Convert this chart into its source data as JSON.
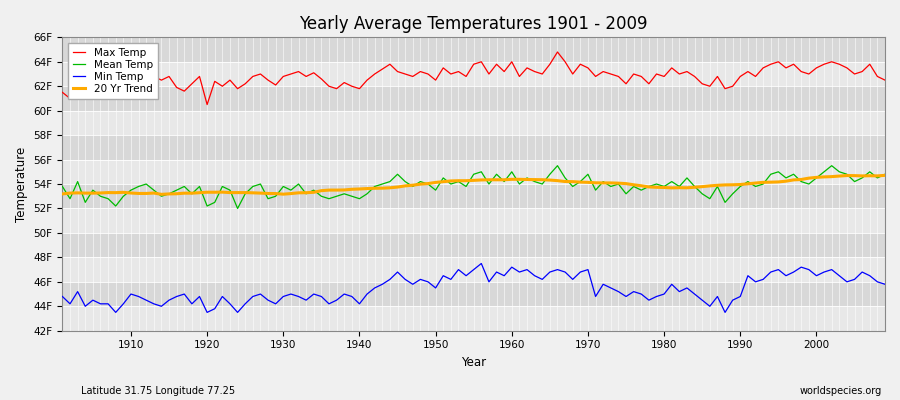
{
  "title": "Yearly Average Temperatures 1901 - 2009",
  "xlabel": "Year",
  "ylabel": "Temperature",
  "subtitle_left": "Latitude 31.75 Longitude 77.25",
  "subtitle_right": "worldspecies.org",
  "ylim": [
    42,
    66
  ],
  "yticks": [
    42,
    44,
    46,
    48,
    50,
    52,
    54,
    56,
    58,
    60,
    62,
    64,
    66
  ],
  "ytick_labels": [
    "42F",
    "44F",
    "46F",
    "48F",
    "50F",
    "52F",
    "54F",
    "56F",
    "58F",
    "60F",
    "62F",
    "64F",
    "66F"
  ],
  "xlim": [
    1901,
    2009
  ],
  "bg_color": "#f0f0f0",
  "plot_bg_color": "#f0f0f0",
  "band_color1": "#e8e8e8",
  "band_color2": "#d8d8d8",
  "grid_color": "#ffffff",
  "max_color": "#ff0000",
  "mean_color": "#00bb00",
  "min_color": "#0000ff",
  "trend_color": "#ffaa00",
  "legend_labels": [
    "Max Temp",
    "Mean Temp",
    "Min Temp",
    "20 Yr Trend"
  ],
  "years": [
    1901,
    1902,
    1903,
    1904,
    1905,
    1906,
    1907,
    1908,
    1909,
    1910,
    1911,
    1912,
    1913,
    1914,
    1915,
    1916,
    1917,
    1918,
    1919,
    1920,
    1921,
    1922,
    1923,
    1924,
    1925,
    1926,
    1927,
    1928,
    1929,
    1930,
    1931,
    1932,
    1933,
    1934,
    1935,
    1936,
    1937,
    1938,
    1939,
    1940,
    1941,
    1942,
    1943,
    1944,
    1945,
    1946,
    1947,
    1948,
    1949,
    1950,
    1951,
    1952,
    1953,
    1954,
    1955,
    1956,
    1957,
    1958,
    1959,
    1960,
    1961,
    1962,
    1963,
    1964,
    1965,
    1966,
    1967,
    1968,
    1969,
    1970,
    1971,
    1972,
    1973,
    1974,
    1975,
    1976,
    1977,
    1978,
    1979,
    1980,
    1981,
    1982,
    1983,
    1984,
    1985,
    1986,
    1987,
    1988,
    1989,
    1990,
    1991,
    1992,
    1993,
    1994,
    1995,
    1996,
    1997,
    1998,
    1999,
    2000,
    2001,
    2002,
    2003,
    2004,
    2005,
    2006,
    2007,
    2008,
    2009
  ],
  "max_temp": [
    61.5,
    61.0,
    62.8,
    61.2,
    61.6,
    62.2,
    62.0,
    61.8,
    62.1,
    62.5,
    62.6,
    63.1,
    62.8,
    62.5,
    62.8,
    61.9,
    61.6,
    62.2,
    62.8,
    60.5,
    62.4,
    62.0,
    62.5,
    61.8,
    62.2,
    62.8,
    63.0,
    62.5,
    62.1,
    62.8,
    63.0,
    63.2,
    62.8,
    63.1,
    62.6,
    62.0,
    61.8,
    62.3,
    62.0,
    61.8,
    62.5,
    63.0,
    63.4,
    63.8,
    63.2,
    63.0,
    62.8,
    63.2,
    63.0,
    62.5,
    63.5,
    63.0,
    63.2,
    62.8,
    63.8,
    64.0,
    63.0,
    63.8,
    63.2,
    64.0,
    62.8,
    63.5,
    63.2,
    63.0,
    63.8,
    64.8,
    64.0,
    63.0,
    63.8,
    63.5,
    62.8,
    63.2,
    63.0,
    62.8,
    62.2,
    63.0,
    62.8,
    62.2,
    63.0,
    62.8,
    63.5,
    63.0,
    63.2,
    62.8,
    62.2,
    62.0,
    62.8,
    61.8,
    62.0,
    62.8,
    63.2,
    62.8,
    63.5,
    63.8,
    64.0,
    63.5,
    63.8,
    63.2,
    63.0,
    63.5,
    63.8,
    64.0,
    63.8,
    63.5,
    63.0,
    63.2,
    63.8,
    62.8,
    62.5
  ],
  "mean_temp": [
    53.8,
    52.8,
    54.2,
    52.5,
    53.5,
    53.0,
    52.8,
    52.2,
    53.0,
    53.5,
    53.8,
    54.0,
    53.5,
    53.0,
    53.2,
    53.5,
    53.8,
    53.2,
    53.8,
    52.2,
    52.5,
    53.8,
    53.5,
    52.0,
    53.2,
    53.8,
    54.0,
    52.8,
    53.0,
    53.8,
    53.5,
    54.0,
    53.2,
    53.5,
    53.0,
    52.8,
    53.0,
    53.2,
    53.0,
    52.8,
    53.2,
    53.8,
    54.0,
    54.2,
    54.8,
    54.2,
    53.8,
    54.2,
    54.0,
    53.5,
    54.5,
    54.0,
    54.2,
    53.8,
    54.8,
    55.0,
    54.0,
    54.8,
    54.2,
    55.0,
    54.0,
    54.5,
    54.2,
    54.0,
    54.8,
    55.5,
    54.5,
    53.8,
    54.2,
    54.8,
    53.5,
    54.2,
    53.8,
    54.0,
    53.2,
    53.8,
    53.5,
    53.8,
    54.0,
    53.8,
    54.2,
    53.8,
    54.5,
    53.8,
    53.2,
    52.8,
    53.8,
    52.5,
    53.2,
    53.8,
    54.2,
    53.8,
    54.0,
    54.8,
    55.0,
    54.5,
    54.8,
    54.2,
    54.0,
    54.5,
    55.0,
    55.5,
    55.0,
    54.8,
    54.2,
    54.5,
    55.0,
    54.5,
    54.8
  ],
  "min_temp": [
    44.8,
    44.2,
    45.2,
    44.0,
    44.5,
    44.2,
    44.2,
    43.5,
    44.2,
    45.0,
    44.8,
    44.5,
    44.2,
    44.0,
    44.5,
    44.8,
    45.0,
    44.2,
    44.8,
    43.5,
    43.8,
    44.8,
    44.2,
    43.5,
    44.2,
    44.8,
    45.0,
    44.5,
    44.2,
    44.8,
    45.0,
    44.8,
    44.5,
    45.0,
    44.8,
    44.2,
    44.5,
    45.0,
    44.8,
    44.2,
    45.0,
    45.5,
    45.8,
    46.2,
    46.8,
    46.2,
    45.8,
    46.2,
    46.0,
    45.5,
    46.5,
    46.2,
    47.0,
    46.5,
    47.0,
    47.5,
    46.0,
    46.8,
    46.5,
    47.2,
    46.8,
    47.0,
    46.5,
    46.2,
    46.8,
    47.0,
    46.8,
    46.2,
    46.8,
    47.0,
    44.8,
    45.8,
    45.5,
    45.2,
    44.8,
    45.2,
    45.0,
    44.5,
    44.8,
    45.0,
    45.8,
    45.2,
    45.5,
    45.0,
    44.5,
    44.0,
    44.8,
    43.5,
    44.5,
    44.8,
    46.5,
    46.0,
    46.2,
    46.8,
    47.0,
    46.5,
    46.8,
    47.2,
    47.0,
    46.5,
    46.8,
    47.0,
    46.5,
    46.0,
    46.2,
    46.8,
    46.5,
    46.0,
    45.8
  ]
}
